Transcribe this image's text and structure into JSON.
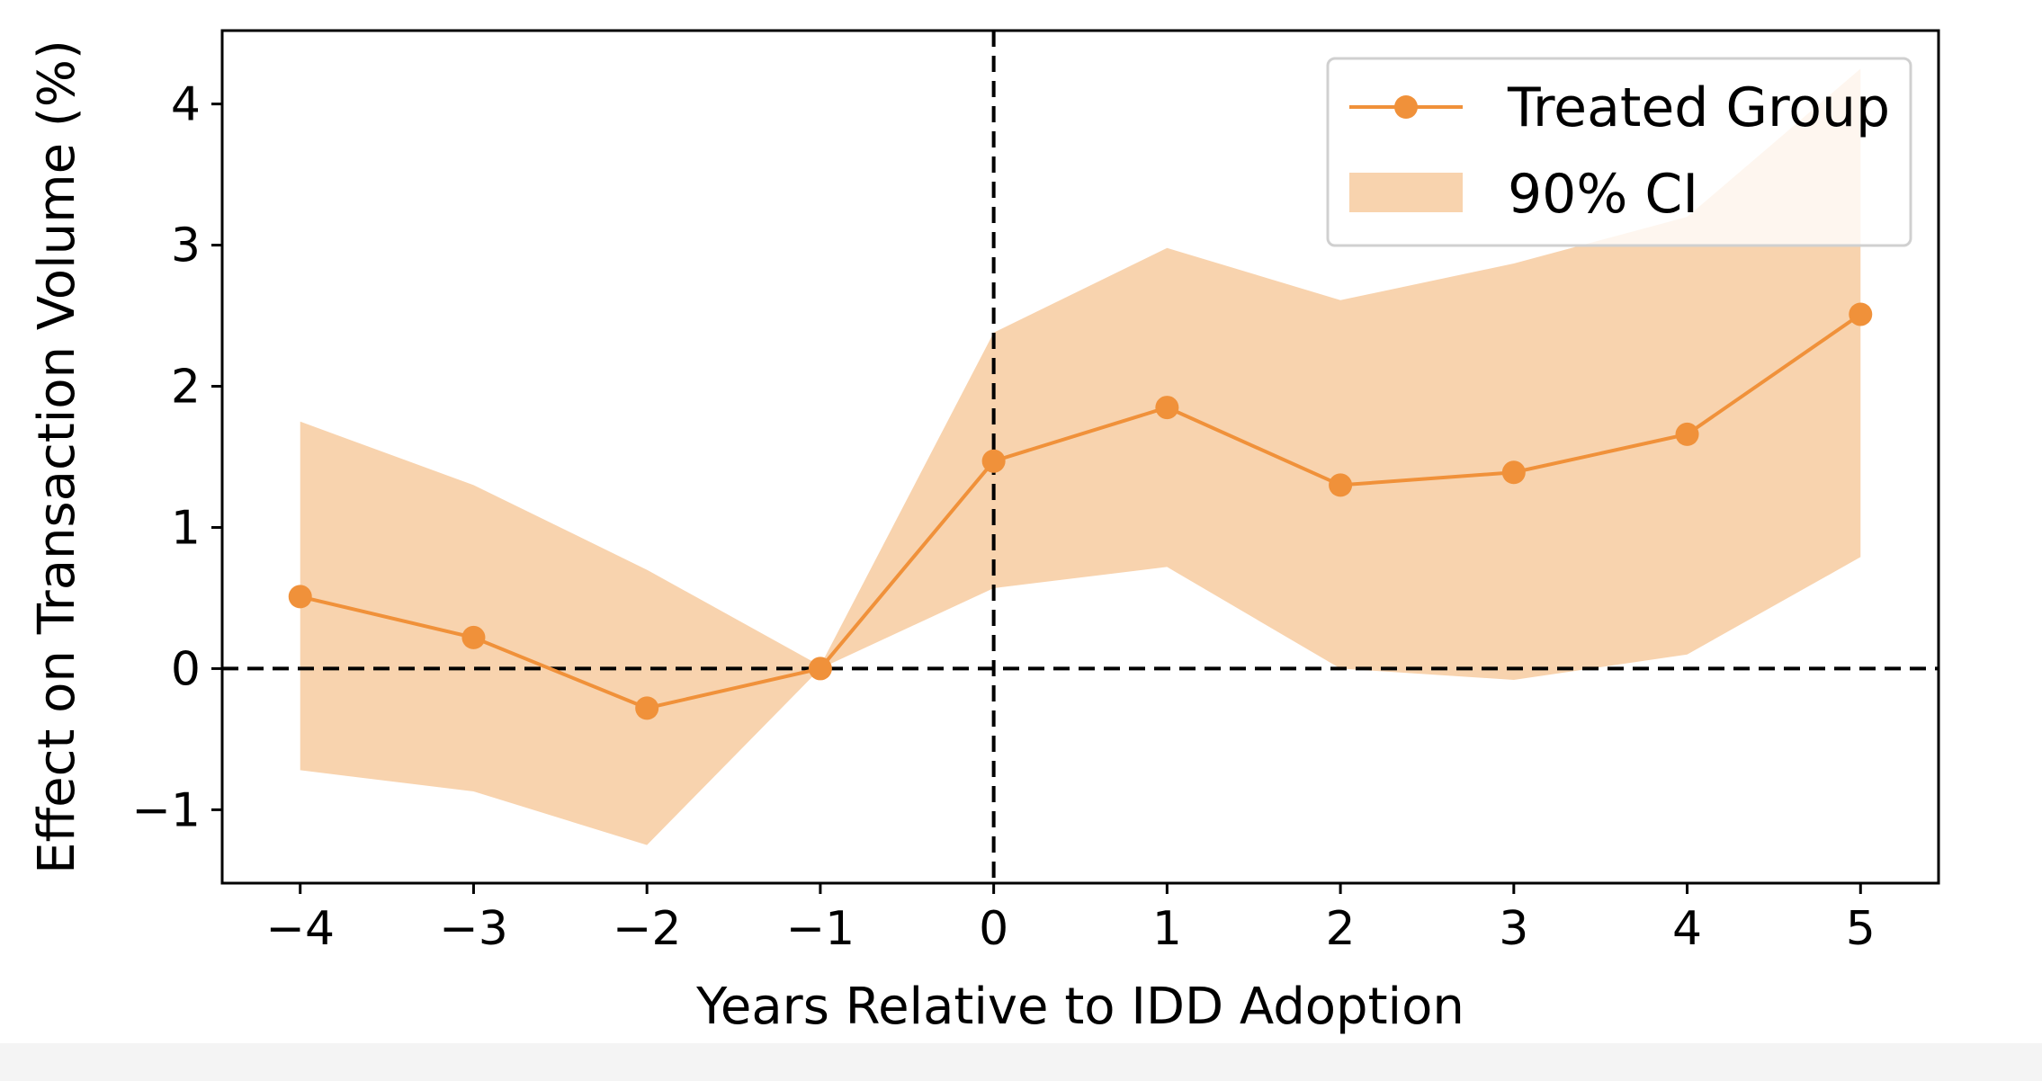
{
  "chart_data": {
    "type": "line",
    "title": "",
    "xlabel": "Years Relative to IDD Adoption",
    "ylabel": "Effect on Transaction Volume (%)",
    "x": [
      -4,
      -3,
      -2,
      -1,
      0,
      1,
      2,
      3,
      4,
      5
    ],
    "xticks": [
      "−4",
      "−3",
      "−2",
      "−1",
      "0",
      "1",
      "2",
      "3",
      "4",
      "5"
    ],
    "xlim": [
      -4.45,
      5.45
    ],
    "yticks": [
      -1,
      0,
      1,
      2,
      3,
      4
    ],
    "ytick_labels": [
      "−1",
      "0",
      "1",
      "2",
      "3",
      "4"
    ],
    "ylim": [
      -1.52,
      4.52
    ],
    "series": [
      {
        "name": "Treated Group",
        "color": "#f0913a",
        "marker": "circle",
        "values": [
          0.51,
          0.22,
          -0.28,
          0.0,
          1.47,
          1.85,
          1.3,
          1.39,
          1.66,
          2.51
        ]
      }
    ],
    "confidence_band": {
      "name": "90% CI",
      "color": "#f8d3ae",
      "lower": [
        -0.72,
        -0.87,
        -1.25,
        0.0,
        0.57,
        0.72,
        0.0,
        -0.08,
        0.1,
        0.79
      ],
      "upper": [
        1.75,
        1.3,
        0.7,
        0.02,
        2.38,
        2.98,
        2.61,
        2.87,
        3.2,
        4.25
      ]
    },
    "reference_lines": [
      {
        "axis": "y",
        "value": 0,
        "style": "dashed",
        "color": "#000000"
      },
      {
        "axis": "x",
        "value": 0,
        "style": "dashed",
        "color": "#000000"
      }
    ],
    "legend": {
      "placement": "top-right",
      "entries": [
        "Treated Group",
        "90% CI"
      ]
    },
    "grid": false
  }
}
